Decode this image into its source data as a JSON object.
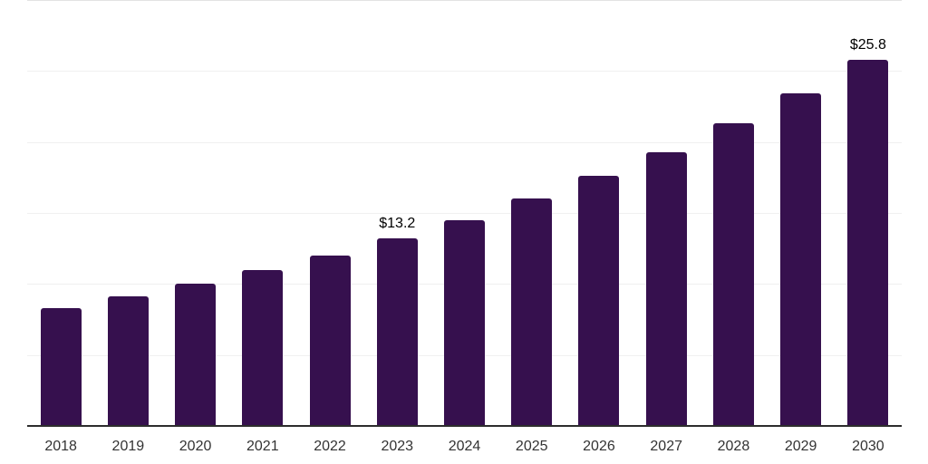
{
  "chart_data": {
    "type": "bar",
    "title": "",
    "xlabel": "",
    "ylabel": "",
    "categories": [
      "2018",
      "2019",
      "2020",
      "2021",
      "2022",
      "2023",
      "2024",
      "2025",
      "2026",
      "2027",
      "2028",
      "2029",
      "2030"
    ],
    "values": [
      8.3,
      9.1,
      10,
      11,
      12,
      13.2,
      14.5,
      16,
      17.6,
      19.3,
      21.3,
      23.4,
      25.8
    ],
    "data_labels": {
      "2023": "$13.2",
      "2030": "$25.8"
    },
    "value_prefix": "$",
    "ylim": [
      0,
      30
    ],
    "gridline_step": 5,
    "grid": true,
    "y_tick_labels_shown": false,
    "legend": "none",
    "bar_color": "#36104E",
    "gridline_color": "#f0f0f0",
    "gridline_top_color": "#e3e3e3",
    "axis_line_color": "#2d2d2d",
    "x_label_color": "#333333",
    "data_label_color": "#000000"
  }
}
